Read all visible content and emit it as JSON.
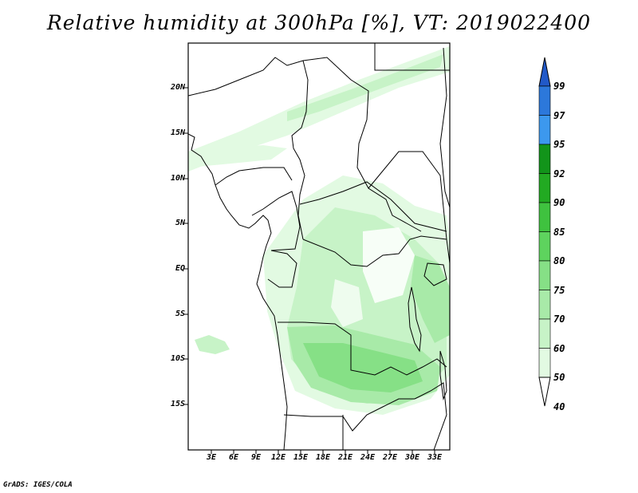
{
  "title": "Relative humidity at 300hPa [%], VT: 2019022400",
  "credit": "GrADS: IGES/COLA",
  "map": {
    "lat_labels": [
      "20N",
      "15N",
      "10N",
      "5N",
      "EQ",
      "5S",
      "10S",
      "15S"
    ],
    "lon_labels": [
      "3E",
      "6E",
      "9E",
      "12E",
      "15E",
      "18E",
      "21E",
      "24E",
      "27E",
      "30E",
      "33E"
    ]
  },
  "colorbar": {
    "levels": [
      "99",
      "97",
      "95",
      "92",
      "90",
      "85",
      "80",
      "75",
      "70",
      "60",
      "50",
      "40"
    ],
    "colors": [
      "#2159c8",
      "#2c78db",
      "#3c98ee",
      "#12941a",
      "#22aa22",
      "#3fc23f",
      "#5ed35e",
      "#86e086",
      "#a8eaa8",
      "#c7f3c7",
      "#e2fae2",
      "#ffffff"
    ]
  },
  "chart_data": {
    "type": "heatmap",
    "title": "Relative humidity at 300hPa [%], VT: 2019022400",
    "xlabel": "",
    "ylabel": "",
    "x_ticks": [
      "3E",
      "6E",
      "9E",
      "12E",
      "15E",
      "18E",
      "21E",
      "24E",
      "27E",
      "30E",
      "33E"
    ],
    "y_ticks": [
      "20N",
      "15N",
      "10N",
      "5N",
      "EQ",
      "5S",
      "10S",
      "15S"
    ],
    "lon_range": [
      0,
      35
    ],
    "lat_range": [
      -20,
      25
    ],
    "legend_levels": [
      40,
      50,
      60,
      70,
      75,
      80,
      85,
      90,
      92,
      95,
      97,
      99
    ]
  }
}
